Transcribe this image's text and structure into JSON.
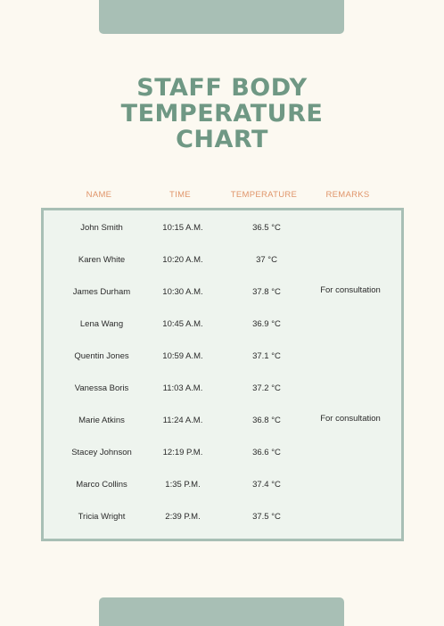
{
  "title_lines": [
    "STAFF BODY",
    "TEMPERATURE",
    "CHART"
  ],
  "headers": [
    "NAME",
    "TIME",
    "TEMPERATURE",
    "REMARKS"
  ],
  "rows": [
    {
      "name": "John Smith",
      "time": "10:15 A.M.",
      "temperature": "36.5 °C",
      "remarks": ""
    },
    {
      "name": "Karen White",
      "time": "10:20 A.M.",
      "temperature": "37 °C",
      "remarks": ""
    },
    {
      "name": "James Durham",
      "time": "10:30 A.M.",
      "temperature": "37.8 °C",
      "remarks": "For consultation"
    },
    {
      "name": "Lena Wang",
      "time": "10:45 A.M.",
      "temperature": "36.9 °C",
      "remarks": ""
    },
    {
      "name": "Quentin Jones",
      "time": "10:59 A.M.",
      "temperature": "37.1 °C",
      "remarks": ""
    },
    {
      "name": "Vanessa Boris",
      "time": "11:03 A.M.",
      "temperature": "37.2 °C",
      "remarks": ""
    },
    {
      "name": "Marie Atkins",
      "time": "11:24 A.M.",
      "temperature": "36.8 °C",
      "remarks": "For consultation"
    },
    {
      "name": "Stacey Johnson",
      "time": "12:19 P.M.",
      "temperature": "36.6 °C",
      "remarks": ""
    },
    {
      "name": "Marco Collins",
      "time": "1:35 P.M.",
      "temperature": "37.4 °C",
      "remarks": ""
    },
    {
      "name": "Tricia Wright",
      "time": "2:39 P.M.",
      "temperature": "37.5 °C",
      "remarks": ""
    }
  ],
  "colors": {
    "accent": "#6f9884",
    "header": "#e0956a",
    "border": "#a8bfb5",
    "table_bg": "#eef4ee",
    "page_bg": "#fcf9f1"
  }
}
